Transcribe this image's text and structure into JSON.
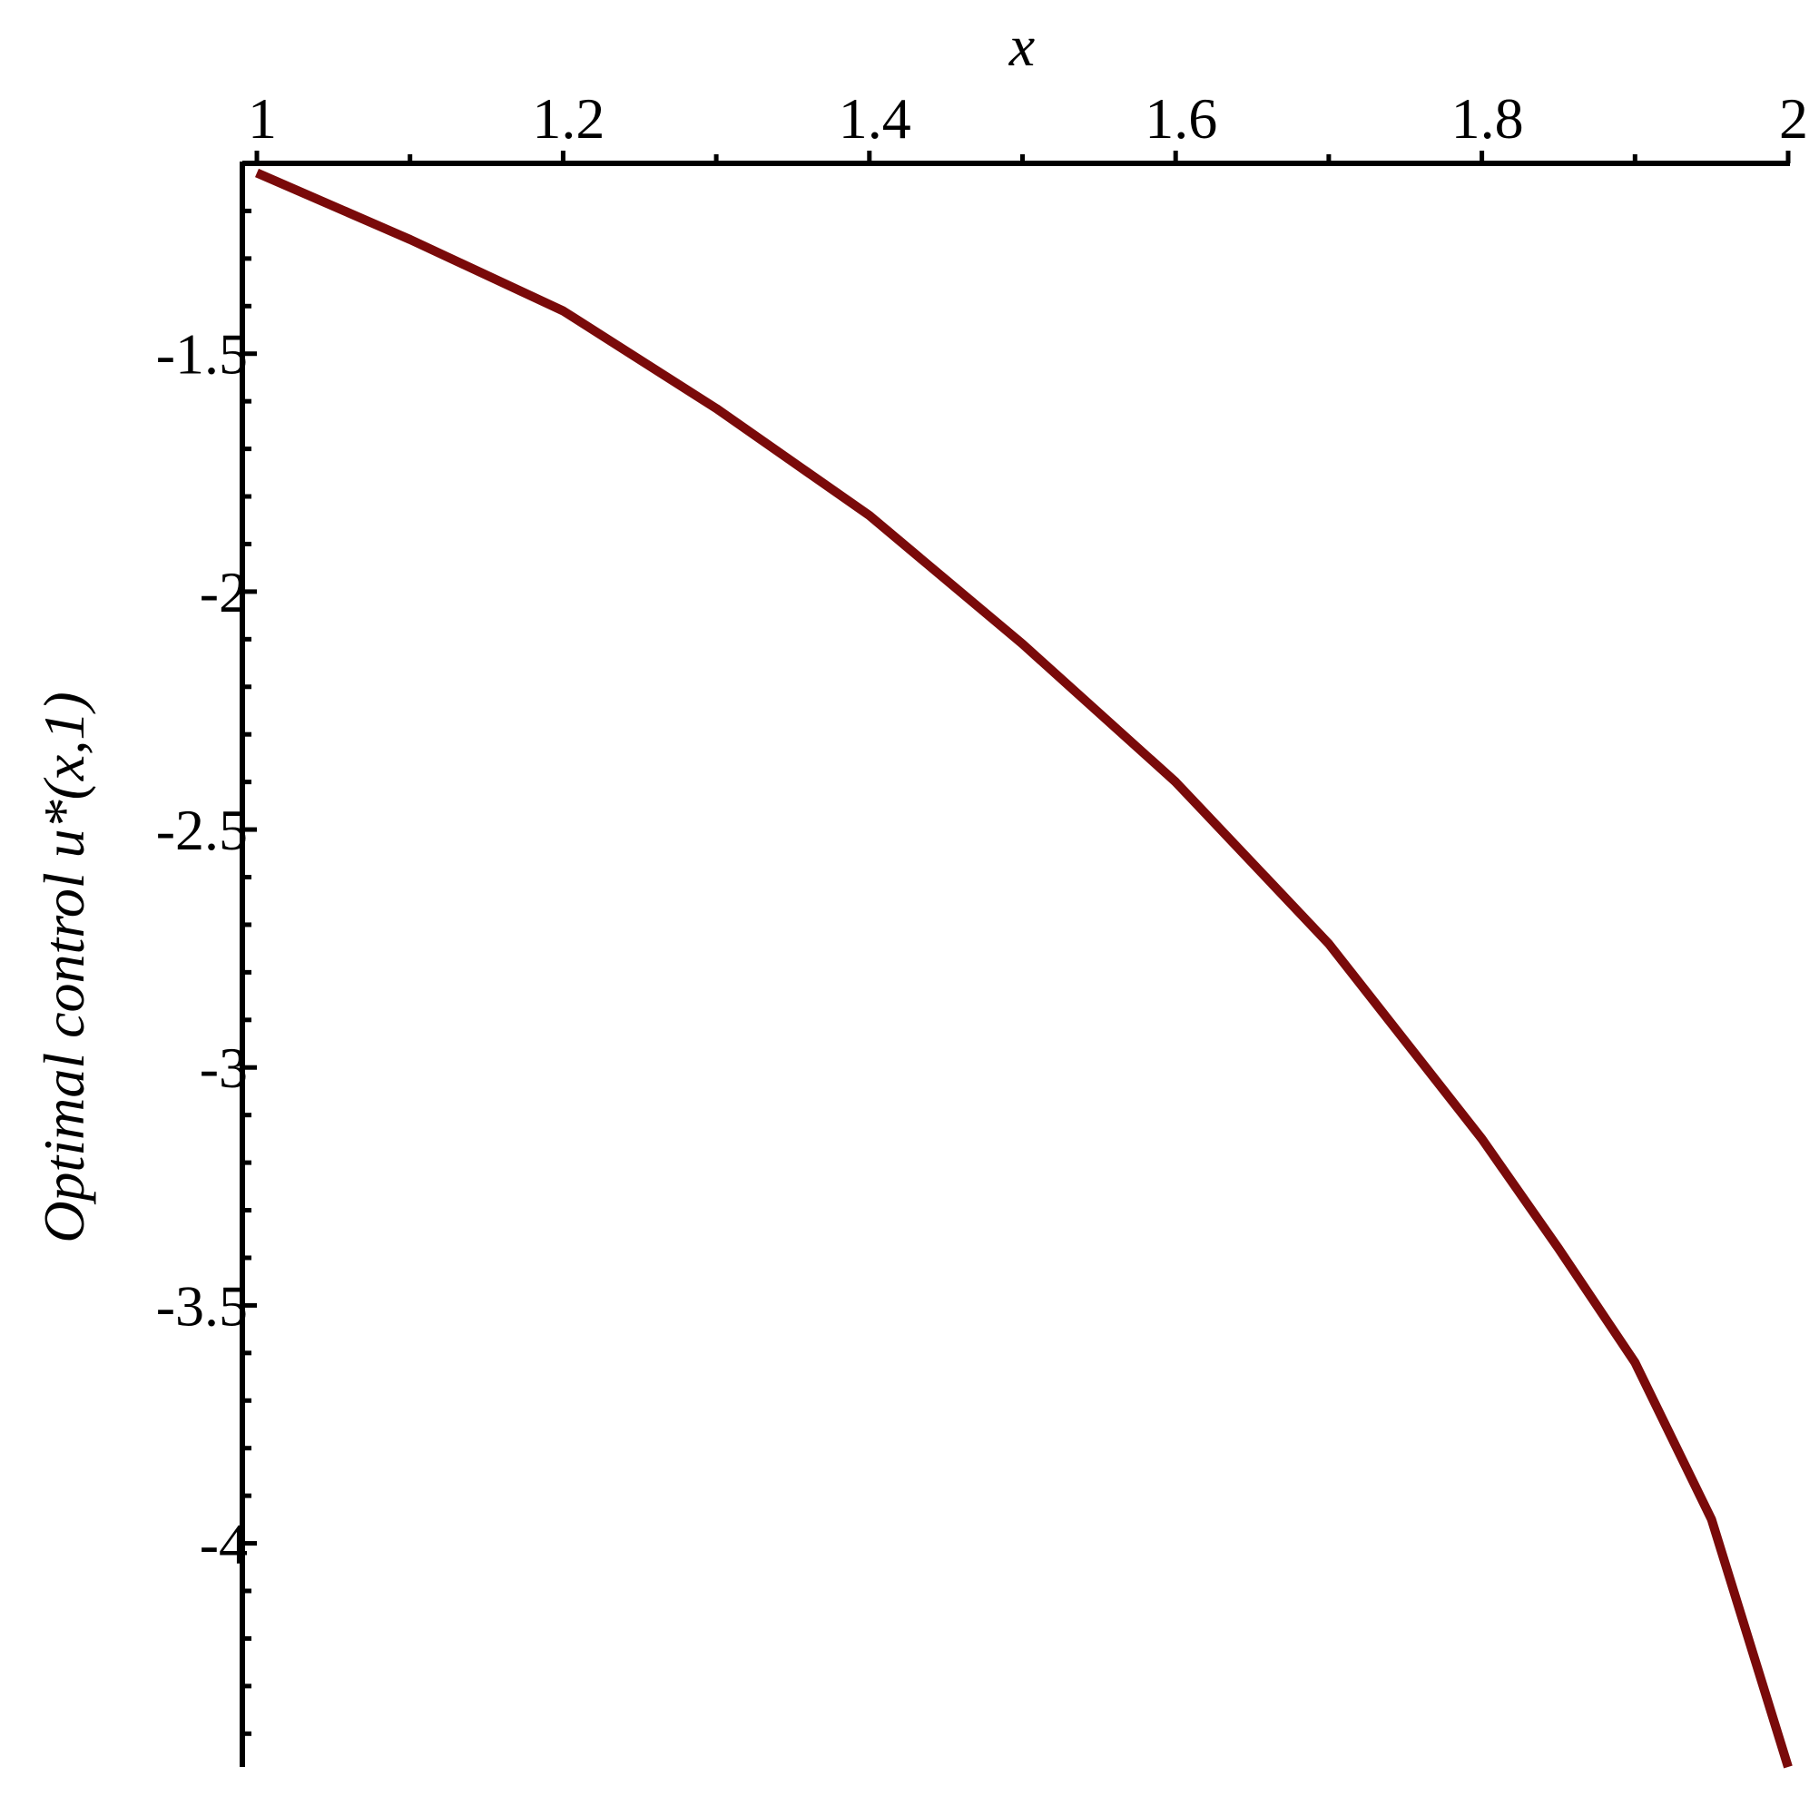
{
  "chart_data": {
    "type": "line",
    "x_label": "x",
    "y_label": "Optimal control u*(x,1)",
    "x": [
      1,
      1.1,
      1.2,
      1.3,
      1.4,
      1.5,
      1.6,
      1.7,
      1.8,
      1.85,
      1.9,
      1.95,
      2
    ],
    "series": [
      {
        "color": "#7a0a0a",
        "values": [
          -1.12,
          -1.26,
          -1.41,
          -1.615,
          -1.84,
          -2.11,
          -2.4,
          -2.74,
          -3.15,
          -3.38,
          -3.62,
          -3.95,
          -4.47
        ]
      }
    ],
    "xlim": [
      1,
      2
    ],
    "ylim": [
      -4.47,
      -1.1
    ],
    "xticks": [
      1,
      1.2,
      1.4,
      1.6,
      1.8,
      2
    ],
    "yticks": [
      -1.5,
      -2,
      -2.5,
      -3,
      -3.5,
      -4
    ]
  }
}
